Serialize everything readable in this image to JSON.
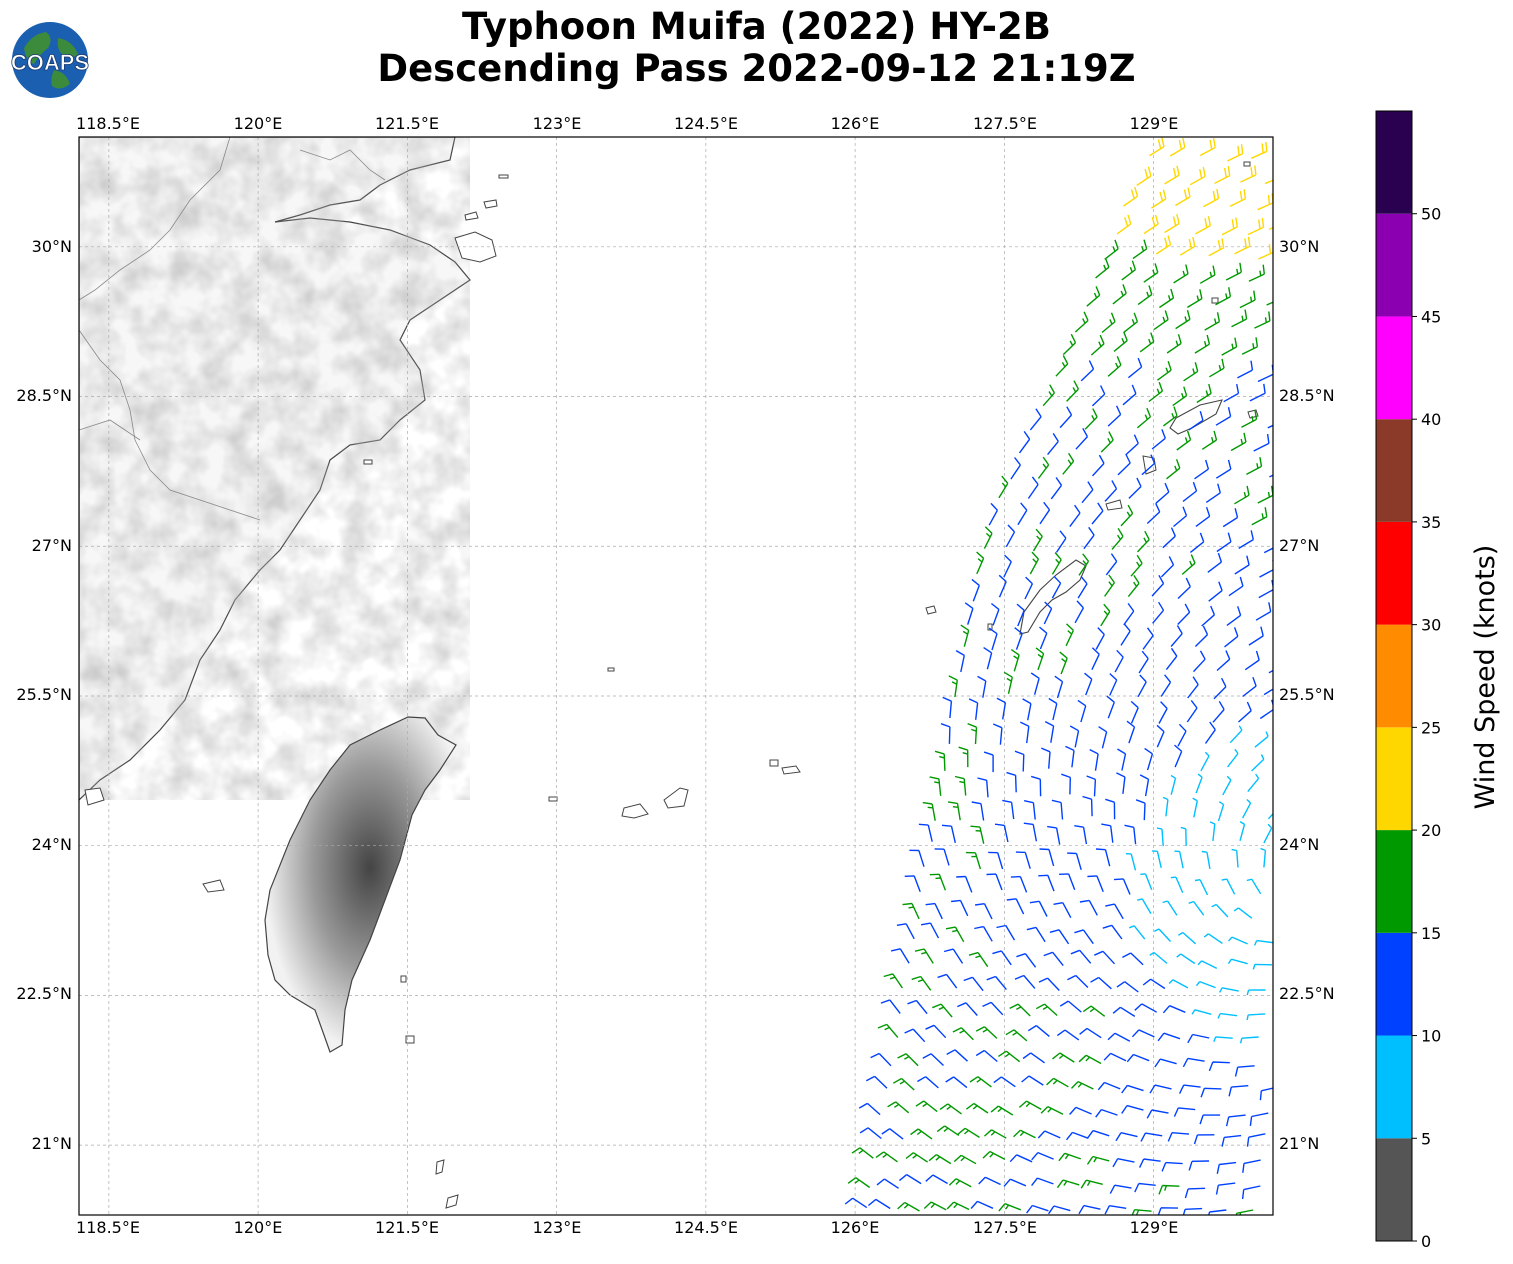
{
  "header": {
    "title_line1": "Typhoon Muifa (2022) HY-2B",
    "title_line2": "Descending Pass 2022-09-12 21:19Z",
    "logo_text": "COAPS"
  },
  "map": {
    "lon_range": [
      118.2,
      130.2
    ],
    "lat_range": [
      20.3,
      31.1
    ],
    "lon_ticks": [
      "118.5°E",
      "120°E",
      "121.5°E",
      "123°E",
      "124.5°E",
      "126°E",
      "127.5°E",
      "129°E"
    ],
    "lat_ticks": [
      "21°N",
      "22.5°N",
      "24°N",
      "25.5°N",
      "27°N",
      "28.5°N",
      "30°N"
    ],
    "gridlines": true,
    "features": [
      "coastlines",
      "country-borders",
      "terrain-shading",
      "wind-barbs"
    ]
  },
  "colorbar": {
    "label": "Wind Speed (knots)",
    "tick_labels": [
      "0",
      "5",
      "10",
      "15",
      "20",
      "25",
      "30",
      "35",
      "40",
      "45",
      "50"
    ],
    "bins": [
      {
        "from": 0,
        "to": 5,
        "color": "#555555"
      },
      {
        "from": 5,
        "to": 10,
        "color": "#00bfff"
      },
      {
        "from": 10,
        "to": 15,
        "color": "#0040ff"
      },
      {
        "from": 15,
        "to": 20,
        "color": "#009900"
      },
      {
        "from": 20,
        "to": 25,
        "color": "#ffd700"
      },
      {
        "from": 25,
        "to": 30,
        "color": "#ff8c00"
      },
      {
        "from": 30,
        "to": 35,
        "color": "#ff0000"
      },
      {
        "from": 35,
        "to": 40,
        "color": "#8b3a2a"
      },
      {
        "from": 40,
        "to": 45,
        "color": "#ff00ff"
      },
      {
        "from": 45,
        "to": 50,
        "color": "#8b00b0"
      },
      {
        "from": 50,
        "to": 55,
        "color": "#2a0050"
      }
    ]
  }
}
